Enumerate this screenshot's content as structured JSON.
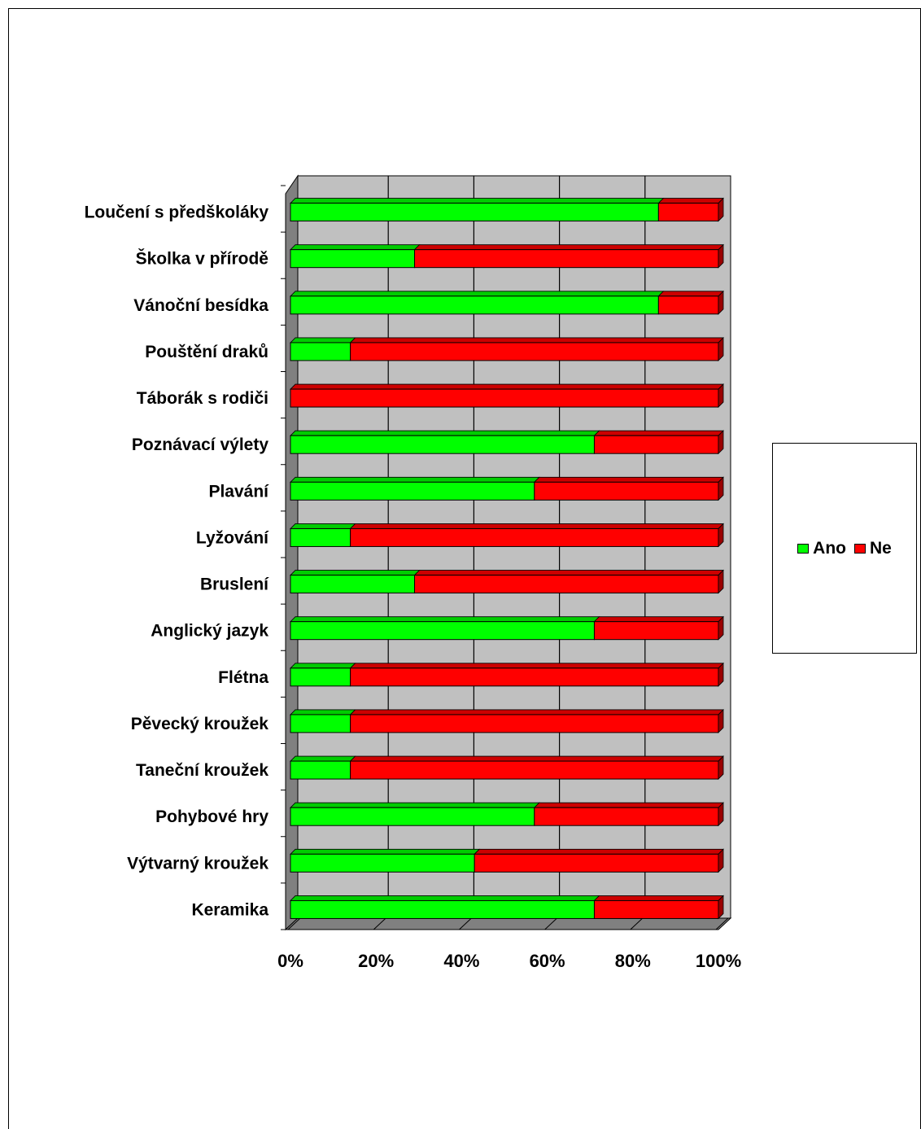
{
  "chart_data": {
    "type": "bar",
    "orientation": "horizontal",
    "stacked": "percent",
    "three_d": true,
    "categories": [
      "Loučení s předškoláky",
      "Školka  v přírodě",
      "Vánoční besídka",
      "Pouštění draků",
      "Táborák s rodiči",
      "Poznávací výlety",
      "Plavání",
      "Lyžování",
      "Bruslení",
      "Anglický  jazyk",
      "Flétna",
      "Pěvecký kroužek",
      "Taneční kroužek",
      "Pohybové  hry",
      "Výtvarný kroužek",
      "Keramika"
    ],
    "series": [
      {
        "name": "Ano",
        "color": "#00ff00",
        "values": [
          86,
          29,
          86,
          14,
          0,
          71,
          57,
          14,
          29,
          71,
          14,
          14,
          14,
          57,
          43,
          71
        ]
      },
      {
        "name": "Ne",
        "color": "#ff0000",
        "values": [
          14,
          71,
          14,
          86,
          100,
          29,
          43,
          86,
          71,
          29,
          86,
          86,
          86,
          43,
          57,
          29
        ]
      }
    ],
    "x_ticks": [
      "0%",
      "20%",
      "40%",
      "60%",
      "80%",
      "100%"
    ],
    "xlim": [
      0,
      100
    ],
    "grid": true,
    "plot_background": "#c0c0c0",
    "legend_position": "right"
  }
}
